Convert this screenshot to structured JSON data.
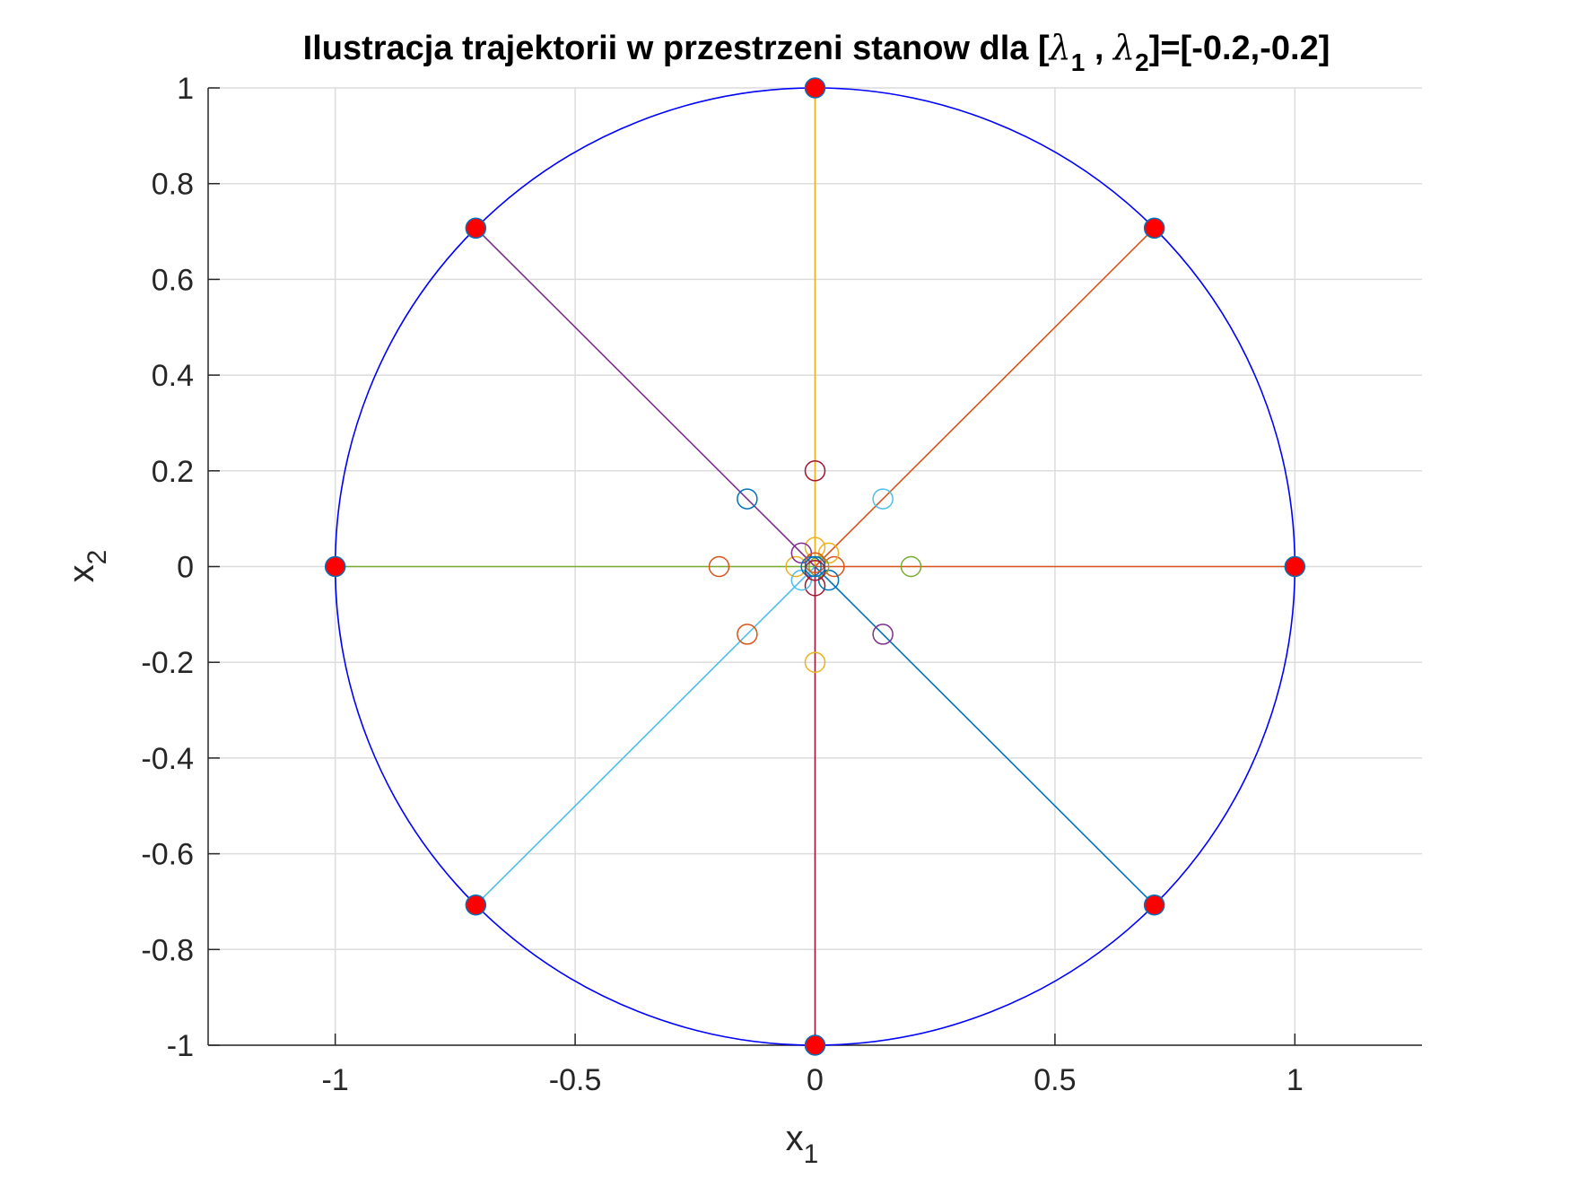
{
  "chart_data": {
    "type": "scatter",
    "title": {
      "prefix": "Ilustracja trajektorii w przestrzeni stanow dla [",
      "sym1": "λ",
      "sub1": "1",
      "mid": " , ",
      "sym2": "λ",
      "sub2": "2",
      "suffix": "]=[-0.2,-0.2]"
    },
    "xlabel": {
      "base": "x",
      "sub": "1"
    },
    "ylabel": {
      "base": "x",
      "sub": "2"
    },
    "xlim": [
      -1.2649,
      1.2649
    ],
    "ylim": [
      -1,
      1
    ],
    "xticks": [
      -1,
      -0.5,
      0,
      0.5,
      1
    ],
    "xtick_labels": [
      "-1",
      "-0.5",
      "0",
      "0.5",
      "1"
    ],
    "yticks": [
      -1,
      -0.8,
      -0.6,
      -0.4,
      -0.2,
      0,
      0.2,
      0.4,
      0.6,
      0.8,
      1
    ],
    "ytick_labels": [
      "-1",
      "-0.8",
      "-0.6",
      "-0.4",
      "-0.2",
      "0",
      "0.2",
      "0.4",
      "0.6",
      "0.8",
      "1"
    ],
    "grid": true,
    "circle": {
      "radius": 1,
      "color": "#0000ff"
    },
    "decay_factor": 0.2,
    "initial_marker_color": "#ff0000",
    "trajectories": [
      {
        "start": [
          1,
          0
        ],
        "color": "#d95319"
      },
      {
        "start": [
          0.7071,
          0.7071
        ],
        "color": "#d95319"
      },
      {
        "start": [
          0,
          1
        ],
        "color": "#edb120"
      },
      {
        "start": [
          -0.7071,
          0.7071
        ],
        "color": "#7e2f8e"
      },
      {
        "start": [
          -1,
          0
        ],
        "color": "#77ac30"
      },
      {
        "start": [
          -0.7071,
          -0.7071
        ],
        "color": "#4dbeee"
      },
      {
        "start": [
          0,
          -1
        ],
        "color": "#a2142f"
      },
      {
        "start": [
          0.7071,
          -0.7071
        ],
        "color": "#0072bd"
      }
    ],
    "state_circles": [
      {
        "point": [
          0.2,
          0
        ],
        "color": "#77ac30"
      },
      {
        "point": [
          -0.2,
          0
        ],
        "color": "#d95319"
      },
      {
        "point": [
          0,
          0.2
        ],
        "color": "#a2142f"
      },
      {
        "point": [
          0,
          -0.2
        ],
        "color": "#edb120"
      },
      {
        "point": [
          0.1414,
          0.1414
        ],
        "color": "#4dbeee"
      },
      {
        "point": [
          -0.1414,
          0.1414
        ],
        "color": "#0072bd"
      },
      {
        "point": [
          0.1414,
          -0.1414
        ],
        "color": "#7e2f8e"
      },
      {
        "point": [
          -0.1414,
          -0.1414
        ],
        "color": "#d95319"
      },
      {
        "point": [
          0.04,
          0
        ],
        "color": "#d95319"
      },
      {
        "point": [
          -0.04,
          0
        ],
        "color": "#edb120"
      },
      {
        "point": [
          0,
          0.04
        ],
        "color": "#edb120"
      },
      {
        "point": [
          0,
          -0.04
        ],
        "color": "#a2142f"
      },
      {
        "point": [
          0.0283,
          0.0283
        ],
        "color": "#edb120"
      },
      {
        "point": [
          -0.0283,
          0.0283
        ],
        "color": "#7e2f8e"
      },
      {
        "point": [
          0.0283,
          -0.0283
        ],
        "color": "#0072bd"
      },
      {
        "point": [
          -0.0283,
          -0.0283
        ],
        "color": "#4dbeee"
      },
      {
        "point": [
          0.008,
          0
        ],
        "color": "#77ac30"
      },
      {
        "point": [
          -0.008,
          0
        ],
        "color": "#0072bd"
      },
      {
        "point": [
          0,
          0.008
        ],
        "color": "#d95319"
      },
      {
        "point": [
          0,
          -0.008
        ],
        "color": "#a2142f"
      },
      {
        "point": [
          0,
          0
        ],
        "color": "#0072bd"
      }
    ]
  }
}
